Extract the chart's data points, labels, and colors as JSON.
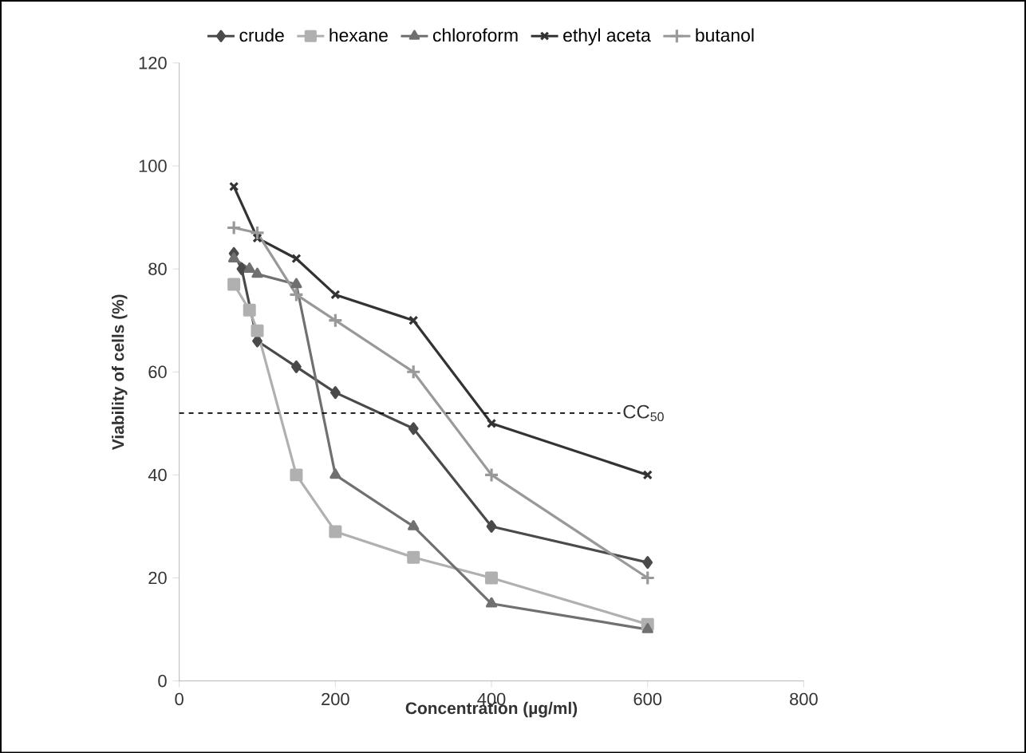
{
  "chart_data": {
    "type": "line",
    "xlabel": "Concentration (µg/ml)",
    "ylabel": "Viability of cells (%)",
    "xlim": [
      0,
      800
    ],
    "xticks": [
      0,
      200,
      400,
      600,
      800
    ],
    "ylim": [
      0,
      120
    ],
    "yticks": [
      0,
      20,
      40,
      60,
      80,
      100,
      120
    ],
    "grid": false,
    "legend": "top",
    "line_style": "solid",
    "series": [
      {
        "name": "crude",
        "color": "#4a4a4a",
        "marker": "diamond",
        "x": [
          70,
          80,
          100,
          150,
          200,
          300,
          400,
          600
        ],
        "values": [
          83,
          80,
          66,
          61,
          56,
          49,
          30,
          23
        ]
      },
      {
        "name": "hexane",
        "color": "#b0b0b0",
        "marker": "square",
        "x": [
          70,
          90,
          100,
          150,
          200,
          300,
          400,
          600
        ],
        "values": [
          77,
          72,
          68,
          40,
          29,
          24,
          20,
          11
        ]
      },
      {
        "name": "chloroform",
        "color": "#707070",
        "marker": "triangle",
        "x": [
          70,
          90,
          100,
          150,
          200,
          300,
          400,
          600
        ],
        "values": [
          82,
          80,
          79,
          77,
          40,
          30,
          15,
          10
        ]
      },
      {
        "name": "ethyl aceta",
        "color": "#333333",
        "marker": "cross",
        "x": [
          70,
          100,
          150,
          200,
          300,
          400,
          600
        ],
        "values": [
          96,
          86,
          82,
          75,
          70,
          50,
          40
        ]
      },
      {
        "name": "butanol",
        "color": "#999999",
        "marker": "cross",
        "x": [
          70,
          100,
          150,
          200,
          300,
          400,
          600
        ],
        "values": [
          88,
          87,
          75,
          70,
          60,
          40,
          20
        ]
      }
    ],
    "ref_lines": [
      {
        "axis": "y",
        "value": 52,
        "label": "CC$_{50}$",
        "color": "#000000",
        "line_style": "dashed"
      }
    ]
  }
}
